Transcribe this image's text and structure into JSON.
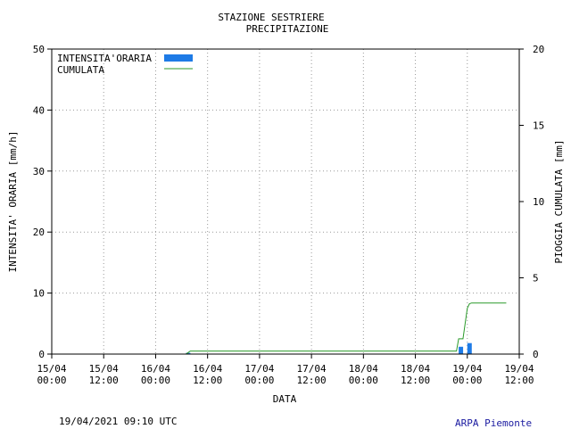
{
  "chart_data": {
    "type": "bar+line",
    "title_lines": [
      "STAZIONE SESTRIERE",
      "PRECIPITAZIONE"
    ],
    "xlabel": "DATA",
    "ylabel_left": "INTENSITA' ORARIA [mm/h]",
    "ylabel_right": "PIOGGIA CUMULATA [mm]",
    "ylim_left": [
      0,
      50
    ],
    "ylim_right": [
      0,
      20
    ],
    "yticks_left": [
      0,
      10,
      20,
      30,
      40,
      50
    ],
    "yticks_right": [
      0,
      5,
      10,
      15,
      20
    ],
    "x_range_hours": [
      0,
      108
    ],
    "x_ticks": [
      {
        "h": 0,
        "date": "15/04",
        "time": "00:00"
      },
      {
        "h": 12,
        "date": "15/04",
        "time": "12:00"
      },
      {
        "h": 24,
        "date": "16/04",
        "time": "00:00"
      },
      {
        "h": 36,
        "date": "16/04",
        "time": "12:00"
      },
      {
        "h": 48,
        "date": "17/04",
        "time": "00:00"
      },
      {
        "h": 60,
        "date": "17/04",
        "time": "12:00"
      },
      {
        "h": 72,
        "date": "18/04",
        "time": "00:00"
      },
      {
        "h": 84,
        "date": "18/04",
        "time": "12:00"
      },
      {
        "h": 96,
        "date": "19/04",
        "time": "00:00"
      },
      {
        "h": 108,
        "date": "19/04",
        "time": "12:00"
      }
    ],
    "grid": true,
    "legend_position": "top-left",
    "series": [
      {
        "name": "INTENSITA'ORARIA",
        "type": "bar",
        "axis": "left",
        "color": "#1e7be6",
        "x_hours": [
          31,
          94,
          96
        ],
        "values": [
          0.2,
          1.2,
          1.8
        ]
      },
      {
        "name": "CUMULATA",
        "type": "step-line",
        "axis": "right",
        "color": "#2a9a2a",
        "x_hours": [
          31,
          31.5,
          32,
          93.5,
          94,
          95,
          95.5,
          96,
          96.5,
          97,
          100,
          105
        ],
        "values": [
          0,
          0.1,
          0.2,
          0.2,
          1.0,
          1.0,
          2.0,
          3.0,
          3.3,
          3.35,
          3.35,
          3.35
        ]
      }
    ]
  },
  "footer": {
    "timestamp": "19/04/2021 09:10 UTC",
    "source": "ARPA Piemonte"
  }
}
